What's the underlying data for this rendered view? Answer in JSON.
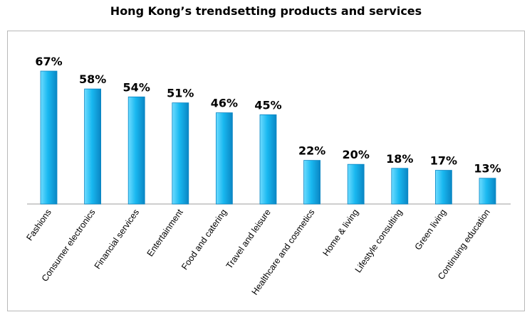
{
  "title": "Hong Kong’s trendsetting products and services",
  "chart_data": {
    "type": "bar",
    "title": "Hong Kong’s trendsetting products and services",
    "categories": [
      "Fashions",
      "Consumer electronics",
      "Financial services",
      "Entertainment",
      "Food and catering",
      "Travel and leisure",
      "Healthcare and cosmetics",
      "Home & living",
      "Lifestyle consulting",
      "Green living",
      "Continuing education"
    ],
    "values": [
      67,
      58,
      54,
      51,
      46,
      45,
      22,
      20,
      18,
      17,
      13
    ],
    "value_labels": [
      "67%",
      "58%",
      "54%",
      "51%",
      "46%",
      "45%",
      "22%",
      "20%",
      "18%",
      "17%",
      "13%"
    ],
    "xlabel": "",
    "ylabel": "",
    "ylim": [
      0,
      67
    ],
    "grid": false,
    "legend": "none",
    "colors": {
      "bar": "#19b8f0",
      "bar_light": "#6fdcff",
      "bar_dark": "#0a86c4"
    }
  }
}
